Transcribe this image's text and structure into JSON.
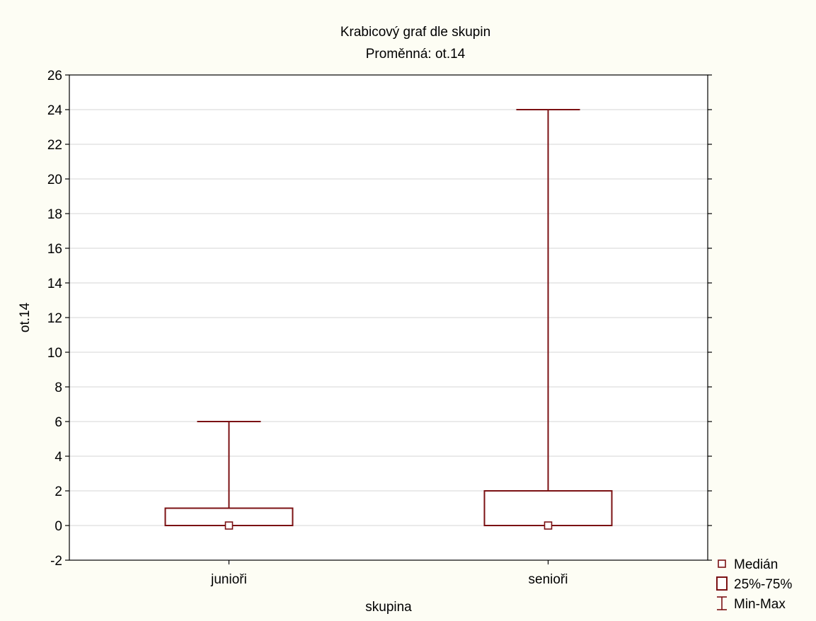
{
  "colors": {
    "background": "#fdfdf4",
    "plot_background": "#ffffff",
    "box_stroke": "#7b1113",
    "grid": "#d6d6d6",
    "axis": "#000000"
  },
  "chart_data": {
    "type": "box",
    "title": "Krabicový graf dle skupin",
    "subtitle": "Proměnná: ot.14",
    "xlabel": "skupina",
    "ylabel": "ot.14",
    "ylim": [
      -2,
      26
    ],
    "yticks": [
      -2,
      0,
      2,
      4,
      6,
      8,
      10,
      12,
      14,
      16,
      18,
      20,
      22,
      24,
      26
    ],
    "grid": true,
    "legend_position": "bottom-right",
    "legend": [
      {
        "symbol": "median",
        "label": "Medián"
      },
      {
        "symbol": "box",
        "label": "25%-75%"
      },
      {
        "symbol": "whisker",
        "label": "Min-Max"
      }
    ],
    "categories": [
      "junioři",
      "senioři"
    ],
    "boxes": [
      {
        "category": "junioři",
        "min": 0,
        "q1": 0,
        "median": 0,
        "q3": 1,
        "max": 6
      },
      {
        "category": "senioři",
        "min": 0,
        "q1": 0,
        "median": 0,
        "q3": 2,
        "max": 24
      }
    ]
  }
}
